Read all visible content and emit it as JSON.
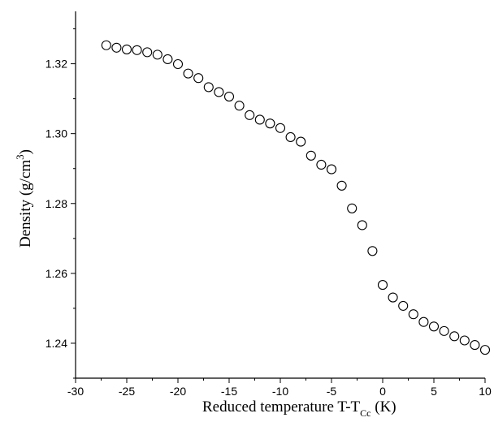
{
  "chart_data": {
    "type": "scatter",
    "title": "",
    "xlabel": "Reduced temperature  T-T",
    "xlabel_subscript": "Cc",
    "xlabel_unit": " (K)",
    "ylabel": "Density (g/cm",
    "ylabel_superscript": "3",
    "ylabel_close": ")",
    "xlim": [
      -30,
      10
    ],
    "ylim": [
      1.23,
      1.335
    ],
    "x_ticks": [
      -30,
      -25,
      -20,
      -15,
      -10,
      -5,
      0,
      5,
      10
    ],
    "x_tick_labels": [
      "-30",
      "-25",
      "-20",
      "-15",
      "-10",
      "-5",
      "0",
      "5",
      "10"
    ],
    "y_ticks": [
      1.24,
      1.26,
      1.28,
      1.3,
      1.32
    ],
    "y_tick_labels": [
      "1.24",
      "1.26",
      "1.28",
      "1.30",
      "1.32"
    ],
    "grid": false,
    "legend": "none",
    "marker": "open-circle",
    "marker_color": "#000000",
    "series": [
      {
        "x": [
          -27,
          -26,
          -25,
          -24,
          -23,
          -22,
          -21,
          -20,
          -19,
          -18,
          -17,
          -16,
          -15,
          -14,
          -13,
          -12,
          -11,
          -10,
          -9,
          -8,
          -7,
          -6,
          -5,
          -4,
          -3,
          -2,
          -1,
          0,
          1,
          2,
          3,
          4,
          5,
          6,
          7,
          8,
          9,
          10
        ],
        "y": [
          1.3253,
          1.3246,
          1.3241,
          1.3239,
          1.3233,
          1.3226,
          1.3213,
          1.3199,
          1.3172,
          1.3159,
          1.3133,
          1.3119,
          1.3106,
          1.308,
          1.3053,
          1.304,
          1.3029,
          1.3016,
          1.299,
          1.2977,
          1.2937,
          1.2911,
          1.2898,
          1.2851,
          1.2786,
          1.2738,
          1.2664,
          1.2567,
          1.2531,
          1.2507,
          1.2483,
          1.2461,
          1.2448,
          1.2435,
          1.242,
          1.2408,
          1.2395,
          1.2381
        ]
      }
    ]
  }
}
